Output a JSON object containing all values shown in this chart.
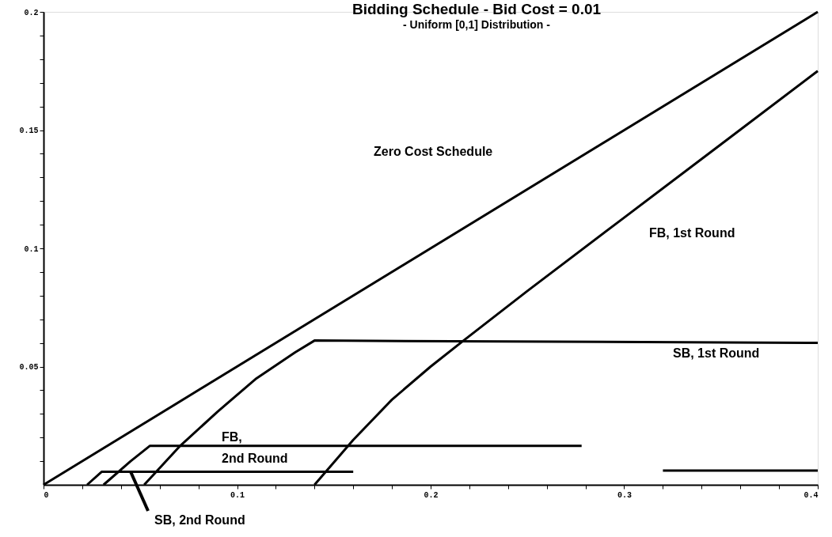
{
  "chart_data": {
    "type": "line",
    "title": "Bidding Schedule - Bid Cost = 0.01",
    "subtitle": "- Uniform [0,1] Distribution -",
    "line_style": "solid",
    "marker": "none",
    "grid": false,
    "xlim": [
      0,
      0.4
    ],
    "ylim": [
      0,
      0.2
    ],
    "xticks": [
      0,
      {
        "value": 0.02,
        "label": null
      },
      {
        "value": 0.04,
        "label": null
      },
      {
        "value": 0.06,
        "label": null
      },
      {
        "value": 0.08,
        "label": null
      },
      0.1,
      {
        "value": 0.12,
        "label": null
      },
      {
        "value": 0.14,
        "label": null
      },
      {
        "value": 0.16,
        "label": null
      },
      {
        "value": 0.18,
        "label": null
      },
      0.2,
      {
        "value": 0.22,
        "label": null
      },
      {
        "value": 0.24,
        "label": null
      },
      {
        "value": 0.26,
        "label": null
      },
      {
        "value": 0.28,
        "label": null
      },
      0.3,
      {
        "value": 0.32,
        "label": null
      },
      {
        "value": 0.34,
        "label": null
      },
      {
        "value": 0.36,
        "label": null
      },
      {
        "value": 0.38,
        "label": null
      },
      0.4
    ],
    "yticks": [
      {
        "value": 0.01,
        "label": null
      },
      {
        "value": 0.02,
        "label": null
      },
      {
        "value": 0.03,
        "label": null
      },
      {
        "value": 0.04,
        "label": null
      },
      0.05,
      {
        "value": 0.06,
        "label": null
      },
      {
        "value": 0.07,
        "label": null
      },
      {
        "value": 0.08,
        "label": null
      },
      {
        "value": 0.09,
        "label": null
      },
      0.1,
      {
        "value": 0.11,
        "label": null
      },
      {
        "value": 0.12,
        "label": null
      },
      {
        "value": 0.13,
        "label": null
      },
      {
        "value": 0.14,
        "label": null
      },
      0.15,
      {
        "value": 0.16,
        "label": null
      },
      {
        "value": 0.17,
        "label": null
      },
      {
        "value": 0.18,
        "label": null
      },
      {
        "value": 0.19,
        "label": null
      },
      0.2
    ],
    "series": [
      {
        "color": "#000000",
        "x": [
          0,
          0.4
        ],
        "values": [
          0,
          0.2
        ]
      },
      {
        "color": "#000000",
        "x": [
          0.14,
          0.16,
          0.18,
          0.2,
          0.217,
          0.25,
          0.3,
          0.35,
          0.4
        ],
        "values": [
          0,
          0.019,
          0.036,
          0.05,
          0.061,
          0.082,
          0.113,
          0.144,
          0.175
        ]
      },
      {
        "color": "#000000",
        "x": [
          0.052,
          0.07,
          0.09,
          0.11,
          0.13,
          0.14,
          0.4
        ],
        "values": [
          0,
          0.016,
          0.031,
          0.045,
          0.056,
          0.061,
          0.06
        ]
      },
      {
        "color": "#000000",
        "x": [
          0.031,
          0.045,
          0.055,
          0.278
        ],
        "values": [
          0,
          0.01,
          0.0165,
          0.0165
        ]
      },
      {
        "color": "#000000",
        "x": [
          0.0225,
          0.03,
          0.045,
          0.16,
          0.24,
          0.32,
          0.4
        ],
        "values": [
          0,
          0.0055,
          0.0055,
          0.0055,
          null,
          0.006,
          0.006
        ]
      }
    ],
    "annotations": [
      "Zero Cost Schedule",
      "FB, 1st Round",
      "SB, 1st Round",
      "FB,\n2nd Round",
      {
        "text": "SB, 2nd Round",
        "x": 0.045,
        "y": 0.0055
      }
    ]
  }
}
